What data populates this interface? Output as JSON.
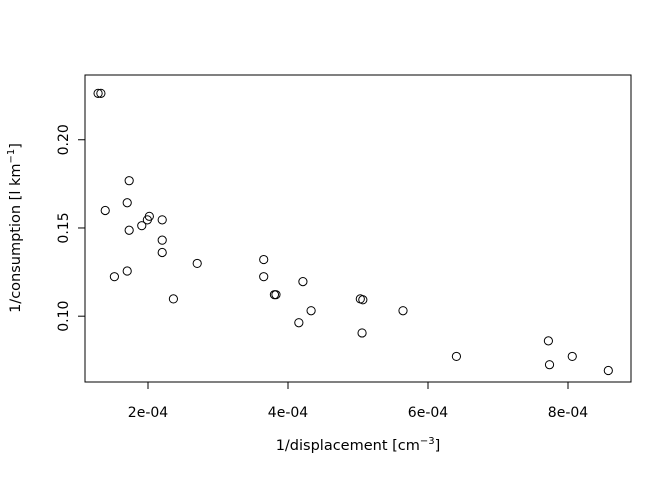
{
  "chart_data": {
    "type": "scatter",
    "title": "",
    "xlabel": {
      "main": "1/displacement [cm",
      "sup": "−3",
      "close": "]"
    },
    "ylabel": {
      "main": "1/consumption [l km",
      "sup": "−1",
      "close": "]"
    },
    "xlim": [
      0.00011,
      0.00089
    ],
    "ylim": [
      0.0627,
      0.2367
    ],
    "x_ticks": [
      {
        "value": 0.0002,
        "label": "2e-04"
      },
      {
        "value": 0.0004,
        "label": "4e-04"
      },
      {
        "value": 0.0006,
        "label": "6e-04"
      },
      {
        "value": 0.0008,
        "label": "8e-04"
      }
    ],
    "y_ticks": [
      {
        "value": 0.1,
        "label": "0.10"
      },
      {
        "value": 0.15,
        "label": "0.15"
      },
      {
        "value": 0.2,
        "label": "0.20"
      }
    ],
    "grid": false,
    "legend": "none",
    "marker": "open-circle",
    "points": [
      {
        "x": 0.0001287,
        "y": 0.2263
      },
      {
        "x": 0.0001327,
        "y": 0.2263
      },
      {
        "x": 0.0001389,
        "y": 0.1599
      },
      {
        "x": 0.000152,
        "y": 0.1224
      },
      {
        "x": 0.0001703,
        "y": 0.1643
      },
      {
        "x": 0.0001703,
        "y": 0.1256
      },
      {
        "x": 0.0001731,
        "y": 0.1768
      },
      {
        "x": 0.0001731,
        "y": 0.1487
      },
      {
        "x": 0.0001911,
        "y": 0.1513
      },
      {
        "x": 0.0001991,
        "y": 0.1546
      },
      {
        "x": 0.0002019,
        "y": 0.1566
      },
      {
        "x": 0.0002203,
        "y": 0.1546
      },
      {
        "x": 0.0002203,
        "y": 0.1431
      },
      {
        "x": 0.0002203,
        "y": 0.1361
      },
      {
        "x": 0.0002363,
        "y": 0.1098
      },
      {
        "x": 0.0002703,
        "y": 0.1299
      },
      {
        "x": 0.0003653,
        "y": 0.1321
      },
      {
        "x": 0.0003653,
        "y": 0.1224
      },
      {
        "x": 0.0003806,
        "y": 0.1122
      },
      {
        "x": 0.0003828,
        "y": 0.1122
      },
      {
        "x": 0.0004155,
        "y": 0.0963
      },
      {
        "x": 0.0004213,
        "y": 0.1196
      },
      {
        "x": 0.000433,
        "y": 0.1031
      },
      {
        "x": 0.0005033,
        "y": 0.1098
      },
      {
        "x": 0.0005069,
        "y": 0.1093
      },
      {
        "x": 0.0005058,
        "y": 0.0905
      },
      {
        "x": 0.0005643,
        "y": 0.1031
      },
      {
        "x": 0.0006406,
        "y": 0.0772
      },
      {
        "x": 0.000772,
        "y": 0.086
      },
      {
        "x": 0.0007736,
        "y": 0.0725
      },
      {
        "x": 0.0008061,
        "y": 0.0772
      },
      {
        "x": 0.0008576,
        "y": 0.0692
      }
    ]
  }
}
